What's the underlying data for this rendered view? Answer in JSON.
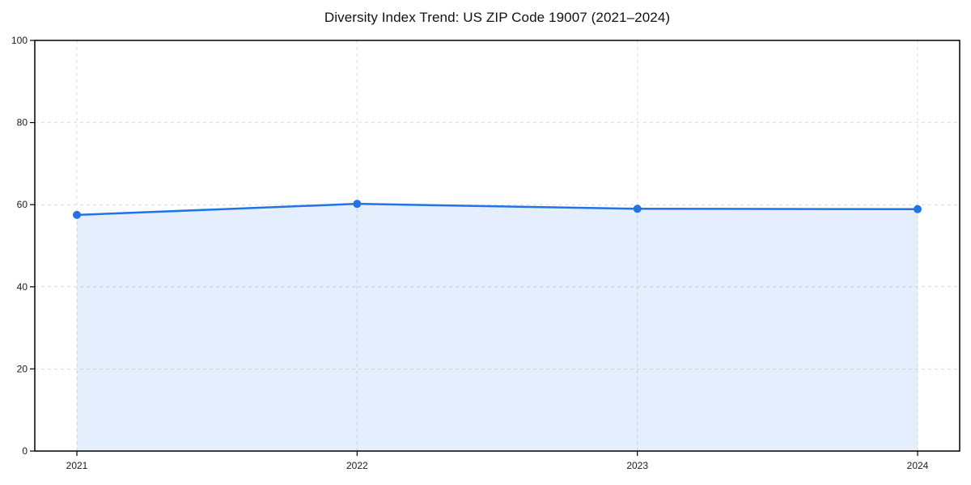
{
  "chart_data": {
    "type": "area",
    "title": "Diversity Index Trend: US ZIP Code 19007 (2021–2024)",
    "categories": [
      "2021",
      "2022",
      "2023",
      "2024"
    ],
    "series": [
      {
        "name": "Diversity Index",
        "values": [
          57.5,
          60.2,
          59.0,
          58.9
        ]
      }
    ],
    "xlabel": "",
    "ylabel": "",
    "ylim": [
      0,
      100
    ],
    "yticks": [
      0,
      20,
      40,
      60,
      80,
      100
    ],
    "grid": "dashed, both axes",
    "legend": "none",
    "line_color": "#2273e6",
    "fill_color": "rgba(34, 115, 230, 0.12)",
    "marker": "circle",
    "grid_color": "#dcdcdc",
    "spine_color": "#000000"
  }
}
